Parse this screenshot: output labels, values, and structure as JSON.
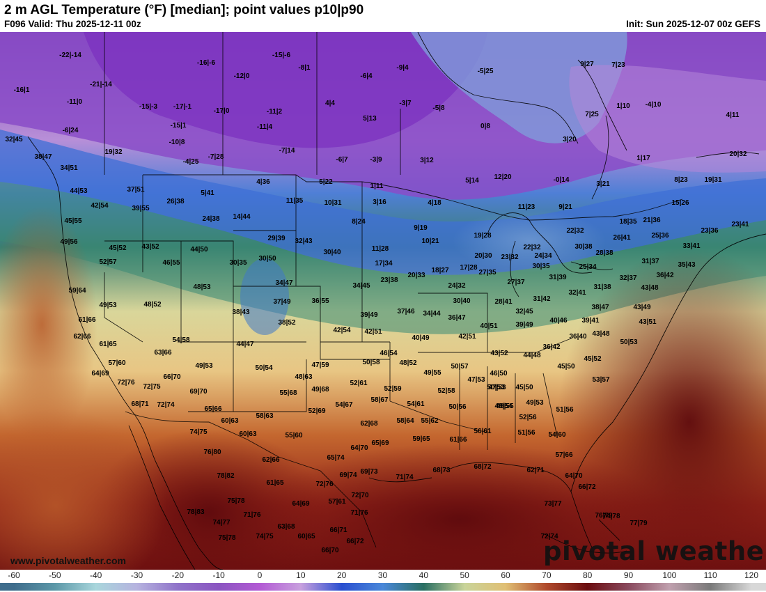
{
  "header": {
    "title": "2 m AGL Temperature (°F) [median]; point values p10|p90",
    "valid": "F096 Valid: Thu 2025-12-11 00z",
    "init": "Init: Sun 2025-12-07 00z GEFS"
  },
  "branding": {
    "watermark": "pivotal weather",
    "site": "www.pivotalweather.com"
  },
  "colorbar": {
    "unit": "°F",
    "ticks": [
      "-60",
      "-50",
      "-40",
      "-30",
      "-20",
      "-10",
      "0",
      "10",
      "20",
      "30",
      "40",
      "50",
      "60",
      "70",
      "80",
      "90",
      "100",
      "110",
      "120"
    ],
    "stops": [
      {
        "t": -60,
        "c": "#3f6d8c"
      },
      {
        "t": -50,
        "c": "#5c98a8"
      },
      {
        "t": -40,
        "c": "#a9d6dc"
      },
      {
        "t": -30,
        "c": "#b6b3df"
      },
      {
        "t": -20,
        "c": "#8f73c9"
      },
      {
        "t": -10,
        "c": "#8b55c1"
      },
      {
        "t": 0,
        "c": "#b35ad4"
      },
      {
        "t": 10,
        "c": "#c8a0de"
      },
      {
        "t": 20,
        "c": "#2a4fd0"
      },
      {
        "t": 30,
        "c": "#4a88d9"
      },
      {
        "t": 40,
        "c": "#2a6f62"
      },
      {
        "t": 50,
        "c": "#c9d49a"
      },
      {
        "t": 60,
        "c": "#e0bf74"
      },
      {
        "t": 70,
        "c": "#b04a2c"
      },
      {
        "t": 80,
        "c": "#6b0d10"
      },
      {
        "t": 90,
        "c": "#8a4a5e"
      },
      {
        "t": 100,
        "c": "#c0a0ae"
      },
      {
        "t": 110,
        "c": "#7a7a7a"
      },
      {
        "t": 120,
        "c": "#d8d8d8"
      }
    ]
  },
  "point_values": [
    {
      "label": "-22|-14"
    },
    {
      "label": "-16|-6"
    },
    {
      "label": "-15|-6"
    },
    {
      "label": "-8|1"
    },
    {
      "label": "-9|4"
    },
    {
      "label": "-5|25"
    },
    {
      "label": "9|27"
    },
    {
      "label": "7|23"
    },
    {
      "label": "-16|1"
    },
    {
      "label": "-21|-14"
    },
    {
      "label": "-12|0"
    },
    {
      "label": "-6|4"
    },
    {
      "label": "-11|0"
    },
    {
      "label": "-15|-3"
    },
    {
      "label": "-17|-1"
    },
    {
      "label": "-17|0"
    },
    {
      "label": "-11|2"
    },
    {
      "label": "4|4"
    },
    {
      "label": "-3|7"
    },
    {
      "label": "-5|8"
    },
    {
      "label": "1|10"
    },
    {
      "label": "-4|10"
    },
    {
      "label": "-6|24"
    },
    {
      "label": "-15|1"
    },
    {
      "label": "-11|4"
    },
    {
      "label": "5|13"
    },
    {
      "label": "0|8"
    },
    {
      "label": "7|25"
    },
    {
      "label": "4|11"
    },
    {
      "label": "32|45"
    },
    {
      "label": "-10|8"
    },
    {
      "label": "3|20"
    },
    {
      "label": "19|32"
    },
    {
      "label": "38|47"
    },
    {
      "label": "-4|25"
    },
    {
      "label": "-7|28"
    },
    {
      "label": "-7|14"
    },
    {
      "label": "-6|7"
    },
    {
      "label": "-3|9"
    },
    {
      "label": "3|12"
    },
    {
      "label": "1|17"
    },
    {
      "label": "20|32"
    },
    {
      "label": "34|51"
    },
    {
      "label": "5|22"
    },
    {
      "label": "1|11"
    },
    {
      "label": "5|14"
    },
    {
      "label": "12|20"
    },
    {
      "label": "-0|14"
    },
    {
      "label": "3|21"
    },
    {
      "label": "8|23"
    },
    {
      "label": "19|31"
    },
    {
      "label": "44|53"
    },
    {
      "label": "37|51"
    },
    {
      "label": "4|36"
    },
    {
      "label": "5|41"
    },
    {
      "label": "42|54"
    },
    {
      "label": "26|38"
    },
    {
      "label": "39|55"
    },
    {
      "label": "11|35"
    },
    {
      "label": "10|31"
    },
    {
      "label": "3|16"
    },
    {
      "label": "4|18"
    },
    {
      "label": "11|23"
    },
    {
      "label": "9|21"
    },
    {
      "label": "15|26"
    },
    {
      "label": "45|55"
    },
    {
      "label": "24|38"
    },
    {
      "label": "14|44"
    },
    {
      "label": "8|24"
    },
    {
      "label": "18|35"
    },
    {
      "label": "21|36"
    },
    {
      "label": "23|36"
    },
    {
      "label": "23|41"
    },
    {
      "label": "9|19"
    },
    {
      "label": "22|32"
    },
    {
      "label": "49|56"
    },
    {
      "label": "45|52"
    },
    {
      "label": "43|52"
    },
    {
      "label": "29|39"
    },
    {
      "label": "32|43"
    },
    {
      "label": "10|21"
    },
    {
      "label": "19|28"
    },
    {
      "label": "25|36"
    },
    {
      "label": "26|41"
    },
    {
      "label": "33|41"
    },
    {
      "label": "44|50"
    },
    {
      "label": "11|28"
    },
    {
      "label": "22|32"
    },
    {
      "label": "30|38"
    },
    {
      "label": "52|57"
    },
    {
      "label": "46|55"
    },
    {
      "label": "30|35"
    },
    {
      "label": "30|50"
    },
    {
      "label": "30|40"
    },
    {
      "label": "17|34"
    },
    {
      "label": "20|30"
    },
    {
      "label": "23|32"
    },
    {
      "label": "24|34"
    },
    {
      "label": "28|38"
    },
    {
      "label": "31|37"
    },
    {
      "label": "35|43"
    },
    {
      "label": "18|27"
    },
    {
      "label": "17|28"
    },
    {
      "label": "30|35"
    },
    {
      "label": "25|34"
    },
    {
      "label": "59|64"
    },
    {
      "label": "48|53"
    },
    {
      "label": "23|38"
    },
    {
      "label": "20|33"
    },
    {
      "label": "27|35"
    },
    {
      "label": "31|39"
    },
    {
      "label": "36|42"
    },
    {
      "label": "34|47"
    },
    {
      "label": "34|45"
    },
    {
      "label": "24|32"
    },
    {
      "label": "27|37"
    },
    {
      "label": "32|37"
    },
    {
      "label": "49|53"
    },
    {
      "label": "48|52"
    },
    {
      "label": "37|49"
    },
    {
      "label": "36|55"
    },
    {
      "label": "31|38"
    },
    {
      "label": "32|41"
    },
    {
      "label": "28|41"
    },
    {
      "label": "31|42"
    },
    {
      "label": "43|48"
    },
    {
      "label": "30|40"
    },
    {
      "label": "38|43"
    },
    {
      "label": "38|47"
    },
    {
      "label": "43|49"
    },
    {
      "label": "61|66"
    },
    {
      "label": "37|46"
    },
    {
      "label": "34|44"
    },
    {
      "label": "36|47"
    },
    {
      "label": "32|45"
    },
    {
      "label": "39|49"
    },
    {
      "label": "38|52"
    },
    {
      "label": "40|46"
    },
    {
      "label": "39|41"
    },
    {
      "label": "43|51"
    },
    {
      "label": "62|66"
    },
    {
      "label": "42|54"
    },
    {
      "label": "42|51"
    },
    {
      "label": "40|51"
    },
    {
      "label": "39|49"
    },
    {
      "label": "36|40"
    },
    {
      "label": "43|48"
    },
    {
      "label": "54|58"
    },
    {
      "label": "40|49"
    },
    {
      "label": "42|51"
    },
    {
      "label": "61|65"
    },
    {
      "label": "44|47"
    },
    {
      "label": "36|42"
    },
    {
      "label": "50|53"
    },
    {
      "label": "63|66"
    },
    {
      "label": "46|54"
    },
    {
      "label": "43|52"
    },
    {
      "label": "44|48"
    },
    {
      "label": "45|52"
    },
    {
      "label": "57|60"
    },
    {
      "label": "49|53"
    },
    {
      "label": "47|59"
    },
    {
      "label": "50|58"
    },
    {
      "label": "48|52"
    },
    {
      "label": "50|57"
    },
    {
      "label": "45|50"
    },
    {
      "label": "64|69"
    },
    {
      "label": "50|54"
    },
    {
      "label": "49|55"
    },
    {
      "label": "46|50"
    },
    {
      "label": "53|57"
    },
    {
      "label": "66|70"
    },
    {
      "label": "48|63"
    },
    {
      "label": "47|53"
    },
    {
      "label": "72|76"
    },
    {
      "label": "72|75"
    },
    {
      "label": "52|61"
    },
    {
      "label": "47|53"
    },
    {
      "label": "52|59"
    },
    {
      "label": "50|53"
    },
    {
      "label": "45|50"
    },
    {
      "label": "69|70"
    },
    {
      "label": "55|68"
    },
    {
      "label": "49|68"
    },
    {
      "label": "52|58"
    },
    {
      "label": "49|55"
    },
    {
      "label": "58|67"
    },
    {
      "label": "49|54"
    },
    {
      "label": "49|53"
    },
    {
      "label": "68|71"
    },
    {
      "label": "72|74"
    },
    {
      "label": "65|66"
    },
    {
      "label": "54|67"
    },
    {
      "label": "54|61"
    },
    {
      "label": "50|56"
    },
    {
      "label": "51|56"
    },
    {
      "label": "52|69"
    },
    {
      "label": "58|63"
    },
    {
      "label": "60|63"
    },
    {
      "label": "52|56"
    },
    {
      "label": "62|68"
    },
    {
      "label": "58|64"
    },
    {
      "label": "55|62"
    },
    {
      "label": "74|75"
    },
    {
      "label": "60|63"
    },
    {
      "label": "55|60"
    },
    {
      "label": "56|61"
    },
    {
      "label": "51|56"
    },
    {
      "label": "54|60"
    },
    {
      "label": "59|65"
    },
    {
      "label": "61|66"
    },
    {
      "label": "65|69"
    },
    {
      "label": "76|80"
    },
    {
      "label": "62|66"
    },
    {
      "label": "64|70"
    },
    {
      "label": "57|66"
    },
    {
      "label": "65|74"
    },
    {
      "label": "78|82"
    },
    {
      "label": "61|65"
    },
    {
      "label": "72|76"
    },
    {
      "label": "69|74"
    },
    {
      "label": "69|73"
    },
    {
      "label": "71|74"
    },
    {
      "label": "68|73"
    },
    {
      "label": "68|72"
    },
    {
      "label": "62|71"
    },
    {
      "label": "64|70"
    },
    {
      "label": "75|78"
    },
    {
      "label": "57|61"
    },
    {
      "label": "64|69"
    },
    {
      "label": "72|70"
    },
    {
      "label": "66|72"
    },
    {
      "label": "71|76"
    },
    {
      "label": "73|77"
    },
    {
      "label": "78|83"
    },
    {
      "label": "76|79"
    },
    {
      "label": "71|76"
    },
    {
      "label": "74|77"
    },
    {
      "label": "63|68"
    },
    {
      "label": "74|78"
    },
    {
      "label": "77|79"
    },
    {
      "label": "60|65"
    },
    {
      "label": "66|71"
    },
    {
      "label": "75|78"
    },
    {
      "label": "74|75"
    },
    {
      "label": "66|72"
    },
    {
      "label": "72|74"
    },
    {
      "label": "66|70"
    }
  ]
}
